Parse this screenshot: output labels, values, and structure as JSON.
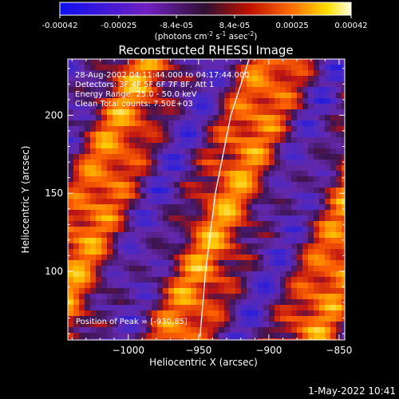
{
  "colorbar": {
    "ticks": [
      "-0.00042",
      "-0.00025",
      "-8.4e-05",
      "8.4e-05",
      "0.00025",
      "0.00042"
    ],
    "tick_values": [
      -0.00042,
      -0.00025,
      -8.4e-05,
      8.4e-05,
      0.00025,
      0.00042
    ],
    "range": [
      -0.00042,
      0.00042
    ],
    "unit_label": "(photons cm",
    "unit_sup1": "-2",
    "unit_mid": " s",
    "unit_sup2": "-1",
    "unit_end": " asec",
    "unit_sup3": "-2",
    "unit_close": ")"
  },
  "chart_data": {
    "type": "heatmap",
    "title": "Reconstructed RHESSI Image",
    "xlabel": "Heliocentric X (arcsec)",
    "ylabel": "Heliocentric Y (arcsec)",
    "xlim": [
      -1043,
      -846
    ],
    "ylim": [
      56,
      236
    ],
    "x_ticks": [
      -1000,
      -950,
      -900,
      -850
    ],
    "x_tick_labels": [
      "−1000",
      "−950",
      "−900",
      "−850"
    ],
    "y_ticks": [
      100,
      150,
      200
    ],
    "y_tick_labels": [
      "100",
      "150",
      "200"
    ],
    "limb_curve": [
      [
        -949,
        58
      ],
      [
        -945,
        100
      ],
      [
        -938,
        150
      ],
      [
        -927,
        200
      ],
      [
        -914,
        236
      ]
    ],
    "annotations": [
      "28-Aug-2002 04:11:44.000 to 04:17:44.000",
      "Detectors: 3F 4F 5F 6F 7F 8F, Att 1",
      "Energy Range: 25.0 - 50.0 keV",
      "Clean    Total counts: 7.50E+03"
    ],
    "peak_label": "Position of Peak = [-930,85]",
    "peak_position": [
      -930,
      85
    ]
  },
  "footer": {
    "timestamp": "1-May-2022 10:41"
  }
}
